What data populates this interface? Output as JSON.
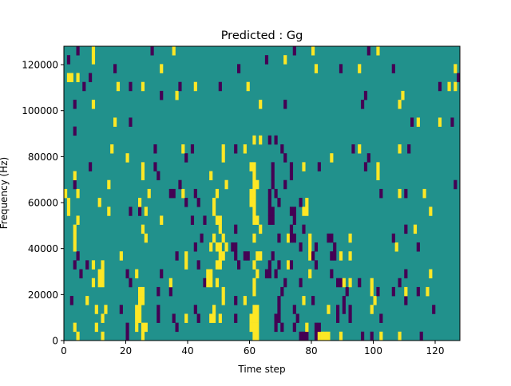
{
  "chart_data": {
    "type": "heatmap",
    "title": "Predicted : Gg",
    "xlabel": "Time step",
    "ylabel": "Frequency (Hz)",
    "xlim": [
      0,
      128
    ],
    "ylim": [
      0,
      128000
    ],
    "xticks": [
      0,
      20,
      40,
      60,
      80,
      100,
      120
    ],
    "yticks": [
      0,
      20000,
      40000,
      60000,
      80000,
      100000,
      120000
    ],
    "n_time_steps": 128,
    "n_freq_bins": 33,
    "grid": false,
    "colors": {
      "background_value_0": "#21918c",
      "value_pos": "#fde725",
      "value_neg": "#440154"
    },
    "cells": {
      "32": [
        [
          4,
          -1
        ],
        [
          9,
          1
        ],
        [
          28,
          -1
        ],
        [
          35,
          1
        ],
        [
          74,
          -1
        ],
        [
          80,
          1
        ],
        [
          98,
          -1
        ],
        [
          101,
          1
        ]
      ],
      "31": [
        [
          9,
          1
        ],
        [
          1,
          -1
        ],
        [
          65,
          -1
        ],
        [
          71,
          1
        ]
      ],
      "30": [
        [
          16,
          -1
        ],
        [
          31,
          1
        ],
        [
          56,
          -1
        ],
        [
          81,
          1
        ],
        [
          89,
          -1
        ],
        [
          95,
          1
        ],
        [
          106,
          -1
        ],
        [
          126,
          1
        ]
      ],
      "29": [
        [
          1,
          1
        ],
        [
          2,
          1
        ],
        [
          4,
          1
        ],
        [
          8,
          -1
        ],
        [
          127,
          -1
        ]
      ],
      "28": [
        [
          6,
          -1
        ],
        [
          17,
          1
        ],
        [
          21,
          -1
        ],
        [
          25,
          1
        ],
        [
          37,
          -1
        ],
        [
          42,
          1
        ],
        [
          50,
          -1
        ],
        [
          59,
          1
        ],
        [
          121,
          -1
        ],
        [
          124,
          1
        ],
        [
          126,
          1
        ]
      ],
      "27": [
        [
          31,
          -1
        ],
        [
          36,
          1
        ],
        [
          97,
          -1
        ],
        [
          109,
          1
        ]
      ],
      "26": [
        [
          3,
          -1
        ],
        [
          9,
          1
        ],
        [
          63,
          1
        ],
        [
          71,
          -1
        ],
        [
          96,
          -1
        ],
        [
          108,
          1
        ]
      ],
      "24": [
        [
          16,
          1
        ],
        [
          21,
          -1
        ],
        [
          112,
          -1
        ],
        [
          114,
          1
        ],
        [
          121,
          1
        ],
        [
          125,
          -1
        ]
      ],
      "23": [
        [
          3,
          -1
        ]
      ],
      "22": [
        [
          61,
          1
        ],
        [
          63,
          1
        ],
        [
          66,
          -1
        ],
        [
          68,
          -1
        ]
      ],
      "21": [
        [
          15,
          1
        ],
        [
          29,
          -1
        ],
        [
          38,
          1
        ],
        [
          41,
          -1
        ],
        [
          51,
          1
        ],
        [
          55,
          -1
        ],
        [
          58,
          1
        ],
        [
          70,
          -1
        ],
        [
          93,
          -1
        ],
        [
          95,
          1
        ],
        [
          108,
          1
        ],
        [
          111,
          -1
        ]
      ],
      "20": [
        [
          20,
          1
        ],
        [
          39,
          -1
        ],
        [
          51,
          1
        ],
        [
          71,
          -1
        ],
        [
          86,
          1
        ],
        [
          98,
          -1
        ]
      ],
      "19": [
        [
          8,
          -1
        ],
        [
          25,
          1
        ],
        [
          29,
          -1
        ],
        [
          60,
          1
        ],
        [
          61,
          1
        ],
        [
          67,
          -1
        ],
        [
          73,
          -1
        ],
        [
          77,
          1
        ],
        [
          82,
          -1
        ],
        [
          97,
          -1
        ],
        [
          101,
          1
        ]
      ],
      "18": [
        [
          3,
          1
        ],
        [
          25,
          1
        ],
        [
          30,
          -1
        ],
        [
          47,
          1
        ],
        [
          61,
          1
        ],
        [
          67,
          -1
        ],
        [
          73,
          -1
        ],
        [
          101,
          1
        ]
      ],
      "17": [
        [
          3,
          -1
        ],
        [
          14,
          1
        ],
        [
          37,
          -1
        ],
        [
          52,
          1
        ],
        [
          61,
          1
        ],
        [
          62,
          1
        ],
        [
          67,
          -1
        ],
        [
          71,
          -1
        ],
        [
          126,
          -1
        ]
      ],
      "16": [
        [
          0,
          1
        ],
        [
          4,
          1
        ],
        [
          27,
          1
        ],
        [
          34,
          -1
        ],
        [
          35,
          -1
        ],
        [
          38,
          1
        ],
        [
          42,
          -1
        ],
        [
          49,
          1
        ],
        [
          60,
          1
        ],
        [
          61,
          1
        ],
        [
          66,
          -1
        ],
        [
          68,
          -1
        ],
        [
          102,
          -1
        ],
        [
          108,
          1
        ],
        [
          110,
          -1
        ],
        [
          116,
          1
        ]
      ],
      "15": [
        [
          1,
          1
        ],
        [
          11,
          1
        ],
        [
          24,
          1
        ],
        [
          39,
          -1
        ],
        [
          43,
          -1
        ],
        [
          48,
          1
        ],
        [
          60,
          1
        ],
        [
          61,
          1
        ],
        [
          66,
          -1
        ],
        [
          69,
          -1
        ],
        [
          76,
          -1
        ],
        [
          78,
          1
        ]
      ],
      "14": [
        [
          1,
          1
        ],
        [
          14,
          1
        ],
        [
          21,
          -1
        ],
        [
          24,
          -1
        ],
        [
          26,
          1
        ],
        [
          48,
          1
        ],
        [
          61,
          1
        ],
        [
          66,
          -1
        ],
        [
          67,
          -1
        ],
        [
          73,
          -1
        ],
        [
          74,
          -1
        ],
        [
          77,
          1
        ],
        [
          78,
          1
        ],
        [
          118,
          1
        ]
      ],
      "13": [
        [
          4,
          1
        ],
        [
          31,
          1
        ],
        [
          41,
          -1
        ],
        [
          45,
          -1
        ],
        [
          49,
          1
        ],
        [
          50,
          1
        ],
        [
          61,
          1
        ],
        [
          62,
          1
        ],
        [
          66,
          -1
        ],
        [
          67,
          -1
        ],
        [
          74,
          -1
        ]
      ],
      "12": [
        [
          3,
          1
        ],
        [
          25,
          1
        ],
        [
          50,
          1
        ],
        [
          55,
          -1
        ],
        [
          63,
          1
        ],
        [
          73,
          -1
        ],
        [
          77,
          -1
        ],
        [
          110,
          -1
        ],
        [
          113,
          1
        ]
      ],
      "11": [
        [
          3,
          1
        ],
        [
          26,
          1
        ],
        [
          44,
          -1
        ],
        [
          48,
          1
        ],
        [
          51,
          1
        ],
        [
          61,
          1
        ],
        [
          69,
          -1
        ],
        [
          72,
          1
        ],
        [
          73,
          -1
        ],
        [
          74,
          -1
        ],
        [
          79,
          1
        ],
        [
          85,
          -1
        ],
        [
          86,
          -1
        ],
        [
          92,
          1
        ],
        [
          106,
          -1
        ]
      ],
      "10": [
        [
          3,
          1
        ],
        [
          42,
          -1
        ],
        [
          47,
          1
        ],
        [
          49,
          1
        ],
        [
          50,
          1
        ],
        [
          52,
          1
        ],
        [
          54,
          -1
        ],
        [
          55,
          -1
        ],
        [
          76,
          -1
        ],
        [
          79,
          1
        ],
        [
          81,
          -1
        ],
        [
          87,
          -1
        ],
        [
          107,
          1
        ],
        [
          114,
          -1
        ]
      ],
      "9": [
        [
          4,
          -1
        ],
        [
          18,
          1
        ],
        [
          36,
          -1
        ],
        [
          39,
          1
        ],
        [
          50,
          1
        ],
        [
          51,
          1
        ],
        [
          55,
          -1
        ],
        [
          58,
          -1
        ],
        [
          59,
          -1
        ],
        [
          62,
          1
        ],
        [
          63,
          1
        ],
        [
          67,
          -1
        ],
        [
          79,
          1
        ],
        [
          80,
          -1
        ],
        [
          86,
          -1
        ],
        [
          87,
          -1
        ],
        [
          89,
          1
        ],
        [
          92,
          1
        ]
      ],
      "8": [
        [
          3,
          -1
        ],
        [
          7,
          -1
        ],
        [
          9,
          1
        ],
        [
          12,
          1
        ],
        [
          39,
          1
        ],
        [
          43,
          -1
        ],
        [
          49,
          1
        ],
        [
          50,
          1
        ],
        [
          56,
          -1
        ],
        [
          61,
          1
        ],
        [
          66,
          -1
        ],
        [
          69,
          -1
        ],
        [
          72,
          1
        ],
        [
          73,
          -1
        ],
        [
          81,
          -1
        ]
      ],
      "7": [
        [
          5,
          -1
        ],
        [
          11,
          1
        ],
        [
          12,
          1
        ],
        [
          20,
          -1
        ],
        [
          23,
          1
        ],
        [
          31,
          -1
        ],
        [
          46,
          1
        ],
        [
          47,
          1
        ],
        [
          62,
          1
        ],
        [
          65,
          -1
        ],
        [
          66,
          -1
        ],
        [
          68,
          -1
        ],
        [
          79,
          1
        ],
        [
          86,
          -1
        ],
        [
          110,
          -1
        ],
        [
          118,
          1
        ]
      ],
      "6": [
        [
          9,
          1
        ],
        [
          11,
          1
        ],
        [
          12,
          1
        ],
        [
          21,
          -1
        ],
        [
          34,
          1
        ],
        [
          45,
          -1
        ],
        [
          46,
          1
        ],
        [
          47,
          1
        ],
        [
          49,
          1
        ],
        [
          61,
          1
        ],
        [
          71,
          -1
        ],
        [
          76,
          -1
        ],
        [
          88,
          -1
        ],
        [
          89,
          -1
        ],
        [
          90,
          1
        ],
        [
          92,
          1
        ],
        [
          95,
          -1
        ],
        [
          99,
          1
        ],
        [
          108,
          -1
        ]
      ],
      "5": [
        [
          24,
          1
        ],
        [
          25,
          1
        ],
        [
          30,
          -1
        ],
        [
          34,
          -1
        ],
        [
          51,
          1
        ],
        [
          61,
          1
        ],
        [
          70,
          -1
        ],
        [
          91,
          -1
        ],
        [
          99,
          1
        ],
        [
          101,
          -1
        ],
        [
          106,
          -1
        ],
        [
          110,
          1
        ],
        [
          114,
          -1
        ],
        [
          117,
          1
        ]
      ],
      "4": [
        [
          2,
          -1
        ],
        [
          7,
          1
        ],
        [
          24,
          1
        ],
        [
          25,
          1
        ],
        [
          51,
          1
        ],
        [
          55,
          -1
        ],
        [
          58,
          1
        ],
        [
          69,
          -1
        ],
        [
          77,
          1
        ],
        [
          80,
          -1
        ],
        [
          90,
          -1
        ],
        [
          100,
          1
        ],
        [
          110,
          -1
        ]
      ],
      "3": [
        [
          10,
          1
        ],
        [
          13,
          1
        ],
        [
          18,
          -1
        ],
        [
          23,
          1
        ],
        [
          24,
          1
        ],
        [
          30,
          -1
        ],
        [
          42,
          -1
        ],
        [
          48,
          1
        ],
        [
          61,
          1
        ],
        [
          62,
          1
        ],
        [
          69,
          -1
        ],
        [
          74,
          -1
        ],
        [
          85,
          1
        ],
        [
          88,
          -1
        ],
        [
          90,
          -1
        ],
        [
          92,
          -1
        ],
        [
          99,
          1
        ],
        [
          119,
          -1
        ]
      ],
      "2": [
        [
          12,
          1
        ],
        [
          23,
          1
        ],
        [
          24,
          1
        ],
        [
          30,
          -1
        ],
        [
          35,
          -1
        ],
        [
          39,
          1
        ],
        [
          43,
          -1
        ],
        [
          47,
          1
        ],
        [
          48,
          1
        ],
        [
          50,
          1
        ],
        [
          55,
          -1
        ],
        [
          60,
          1
        ],
        [
          61,
          1
        ],
        [
          62,
          1
        ],
        [
          68,
          -1
        ],
        [
          69,
          -1
        ],
        [
          75,
          -1
        ],
        [
          88,
          -1
        ],
        [
          92,
          -1
        ],
        [
          102,
          -1
        ]
      ],
      "1": [
        [
          3,
          1
        ],
        [
          10,
          1
        ],
        [
          20,
          -1
        ],
        [
          23,
          1
        ],
        [
          25,
          1
        ],
        [
          26,
          1
        ],
        [
          36,
          -1
        ],
        [
          60,
          1
        ],
        [
          61,
          1
        ],
        [
          62,
          1
        ],
        [
          68,
          -1
        ],
        [
          70,
          -1
        ],
        [
          74,
          -1
        ],
        [
          78,
          1
        ],
        [
          81,
          -1
        ],
        [
          82,
          -1
        ]
      ],
      "0": [
        [
          4,
          1
        ],
        [
          12,
          1
        ],
        [
          20,
          -1
        ],
        [
          25,
          1
        ],
        [
          61,
          1
        ],
        [
          62,
          1
        ],
        [
          76,
          -1
        ],
        [
          77,
          -1
        ],
        [
          78,
          -1
        ],
        [
          81,
          -1
        ],
        [
          82,
          1
        ],
        [
          83,
          1
        ],
        [
          84,
          1
        ],
        [
          85,
          1
        ],
        [
          89,
          1
        ],
        [
          96,
          -1
        ],
        [
          99,
          -1
        ],
        [
          102,
          1
        ],
        [
          108,
          1
        ],
        [
          115,
          -1
        ]
      ]
    }
  }
}
